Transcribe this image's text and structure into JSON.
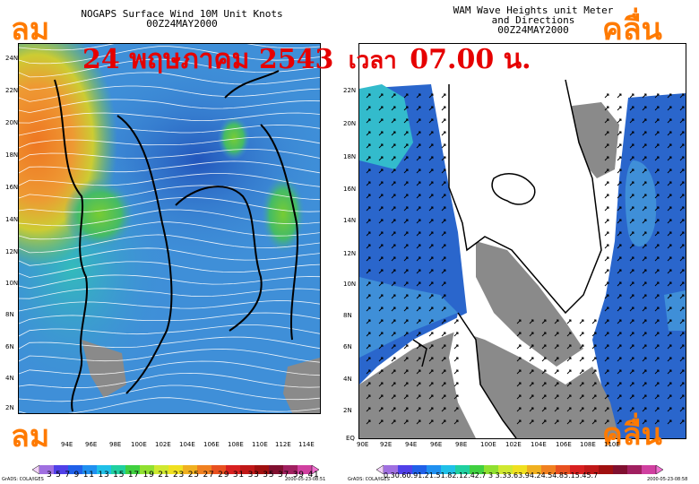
{
  "left_panel": {
    "title_lines": [
      "NOGAPS Surface Wind 10M Unit Knots",
      "00Z24MAY2000"
    ],
    "label_top": "ลม",
    "label_bottom": "ลม",
    "lat_ticks": [
      "24N",
      "22N",
      "20N",
      "18N",
      "16N",
      "14N",
      "12N",
      "10N",
      "8N",
      "6N",
      "4N",
      "2N"
    ],
    "lon_ticks": [
      "94E",
      "96E",
      "98E",
      "100E",
      "102E",
      "104E",
      "106E",
      "108E",
      "110E",
      "112E",
      "114E"
    ],
    "colorbar_labels": "3 5 7 9 11 13 15 17 19 21 23 25 27 29 31 33 35 37 39 41",
    "footer_left": "GrADS: COLA/IGES",
    "footer_right": "2000-05-23-08:51"
  },
  "right_panel": {
    "title_lines": [
      "WAM Wave Heights unit Meter",
      "and Directions",
      "00Z24MAY2000"
    ],
    "label_top": "คลื่น",
    "label_bottom": "คลื่น",
    "lat_ticks": [
      "22N",
      "20N",
      "18N",
      "16N",
      "14N",
      "12N",
      "10N",
      "8N",
      "6N",
      "4N",
      "2N",
      "EQ"
    ],
    "lon_ticks": [
      "90E",
      "92E",
      "94E",
      "96E",
      "98E",
      "100E",
      "102E",
      "104E",
      "106E",
      "108E",
      "110E"
    ],
    "colorbar_labels": "0.30.60.91.21.51.82.12.42.7 3 3.33.63.94.24.54.85.15.45.7",
    "footer_left": "GrADS: COLA/IGES",
    "footer_right": "2000-05-23-08:58"
  },
  "banner": {
    "date_text": "24 พฤษภาคม  2543",
    "time_label": "เวลา",
    "time_value": "07.00 น."
  },
  "colors": {
    "wind_base": "#3f8fd8",
    "wind_green": "#66cc33",
    "wind_orange": "#ee8822",
    "wave_blue": "#2a66cc",
    "wave_cyan": "#33bbcc",
    "land_gray": "#8a8a8a",
    "label_orange": "#ff7a00",
    "banner_red": "#e60000"
  },
  "wind_colorbar": [
    "#f0d0f8",
    "#a070e0",
    "#5040e8",
    "#2060e8",
    "#2090f0",
    "#20c0e8",
    "#20d0a0",
    "#40d040",
    "#90e030",
    "#d0e830",
    "#f0e020",
    "#f0b020",
    "#f08020",
    "#e85020",
    "#d82020",
    "#c01818",
    "#a01010",
    "#801030",
    "#a02060",
    "#d040a0",
    "#f070d0"
  ],
  "wave_colorbar": [
    "#f0d0f8",
    "#a070e0",
    "#5040e8",
    "#2060e8",
    "#2090f0",
    "#20c0e8",
    "#20d0a0",
    "#40d040",
    "#90e030",
    "#d0e830",
    "#f0e020",
    "#f0b020",
    "#f08020",
    "#e85020",
    "#d82020",
    "#c01818",
    "#a01010",
    "#801030",
    "#a02060",
    "#d040a0",
    "#f070d0"
  ]
}
